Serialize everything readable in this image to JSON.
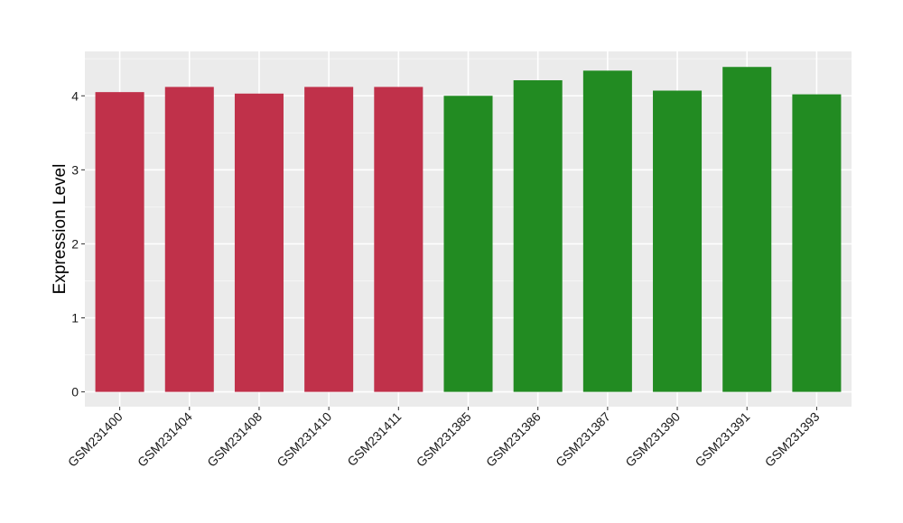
{
  "chart_data": {
    "type": "bar",
    "categories": [
      "GSM231400",
      "GSM231404",
      "GSM231408",
      "GSM231410",
      "GSM231411",
      "GSM231385",
      "GSM231386",
      "GSM231387",
      "GSM231390",
      "GSM231391",
      "GSM231393"
    ],
    "values": [
      4.05,
      4.12,
      4.03,
      4.12,
      4.12,
      4.0,
      4.21,
      4.34,
      4.07,
      4.39,
      4.02
    ],
    "group_of_bar": [
      0,
      0,
      0,
      0,
      0,
      1,
      1,
      1,
      1,
      1,
      1
    ],
    "group_colors": [
      "#c0314a",
      "#228b22"
    ],
    "title": "",
    "xlabel": "",
    "ylabel": "Expression Level",
    "ylim": [
      -0.2,
      4.6
    ],
    "yticks": [
      0,
      1,
      2,
      3,
      4
    ],
    "grid": true,
    "legend": "none",
    "panel_background": "#ebebeb"
  }
}
